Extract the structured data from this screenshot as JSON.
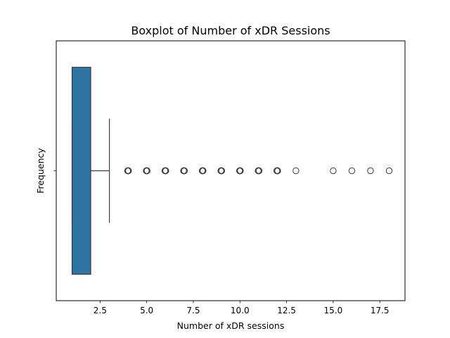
{
  "chart_data": {
    "type": "boxplot",
    "orientation": "horizontal",
    "title": "Boxplot of Number of xDR Sessions",
    "xlabel": "Number of xDR sessions",
    "ylabel": "Frequency",
    "xlim": [
      0.15,
      18.85
    ],
    "xticks": [
      2.5,
      5.0,
      7.5,
      10.0,
      12.5,
      15.0,
      17.5
    ],
    "xtick_labels": [
      "2.5",
      "5.0",
      "7.5",
      "10.0",
      "12.5",
      "15.0",
      "17.5"
    ],
    "box": {
      "whisker_low": 1,
      "q1": 1,
      "median": 1,
      "q3": 2,
      "whisker_high": 3,
      "color": "#2e75a6",
      "edge_color": "#3d3d3d"
    },
    "outliers": [
      4,
      5,
      6,
      7,
      8,
      9,
      10,
      11,
      12,
      13,
      15,
      16,
      17,
      18
    ],
    "grid": false,
    "legend": "none"
  }
}
